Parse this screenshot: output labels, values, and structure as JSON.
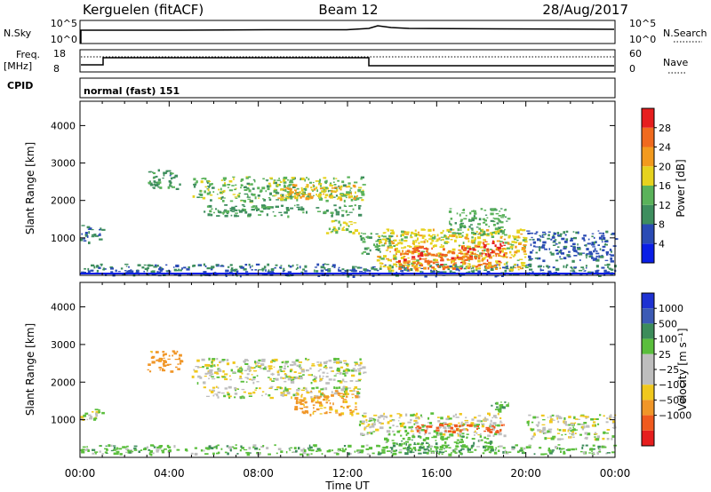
{
  "header": {
    "station": "Kerguelen (fitACF)",
    "beam": "Beam 12",
    "date": "28/Aug/2017"
  },
  "top_panels": {
    "nsky_label": "N.Sky",
    "nsky_ticks": [
      "10^5",
      "10^0"
    ],
    "nsearch_label": "N.Search",
    "nsearch_ticks": [
      "10^5",
      "10^0"
    ],
    "freq_label": "Freq.",
    "freq_unit": "[MHz]",
    "freq_ticks": [
      "18",
      "8"
    ],
    "nave_label": "Nave",
    "nave_ticks": [
      "60",
      "0"
    ],
    "cpid_label": "CPID",
    "cpid_value": "normal (fast) 151"
  },
  "colors": {
    "power_scale": [
      "#0a1ee6",
      "#2a4bb4",
      "#3e8e5e",
      "#5ab25a",
      "#e6d21e",
      "#f29a1e",
      "#f06a1e",
      "#e61e1e"
    ],
    "velocity_scale": [
      "#1e32d2",
      "#3c5ab4",
      "#3c8c5a",
      "#5abe3c",
      "#bebebe",
      "#bebebe",
      "#f0c81e",
      "#f09628",
      "#f05a1e",
      "#e61e1e"
    ]
  },
  "chart_data": [
    {
      "type": "heatmap",
      "name": "power",
      "ylabel": "Slant Range [km]",
      "xlabel": "Time UT",
      "x_ticks": [
        "00:00",
        "04:00",
        "08:00",
        "12:00",
        "16:00",
        "20:00",
        "00:00"
      ],
      "y_ticks": [
        "1000",
        "2000",
        "3000",
        "4000"
      ],
      "ylim": [
        0,
        4650
      ],
      "colorbar_label": "Power [dB]",
      "colorbar_ticks": [
        "4",
        "8",
        "12",
        "16",
        "20",
        "24",
        "28"
      ],
      "colorbar_range": [
        0,
        32
      ],
      "regions": [
        {
          "t0": 0.0,
          "t1": 24.0,
          "r0": 0,
          "r1": 150,
          "v": 7
        },
        {
          "t0": 0.0,
          "t1": 24.0,
          "r0": 150,
          "r1": 320,
          "v": 9
        },
        {
          "t0": 0.0,
          "t1": 1.0,
          "r0": 900,
          "r1": 1350,
          "v": 8
        },
        {
          "t0": 3.0,
          "t1": 4.5,
          "r0": 2300,
          "r1": 2850,
          "v": 10
        },
        {
          "t0": 5.0,
          "t1": 12.7,
          "r0": 2000,
          "r1": 2650,
          "v": 14
        },
        {
          "t0": 8.5,
          "t1": 12.4,
          "r0": 2050,
          "r1": 2450,
          "v": 20
        },
        {
          "t0": 5.5,
          "t1": 12.5,
          "r0": 1600,
          "r1": 1900,
          "v": 11
        },
        {
          "t0": 11.0,
          "t1": 12.5,
          "r0": 1150,
          "r1": 1500,
          "v": 16
        },
        {
          "t0": 12.5,
          "t1": 14.0,
          "r0": 600,
          "r1": 1150,
          "v": 12
        },
        {
          "t0": 13.3,
          "t1": 20.0,
          "r0": 150,
          "r1": 1250,
          "v": 18
        },
        {
          "t0": 14.0,
          "t1": 18.8,
          "r0": 200,
          "r1": 800,
          "v": 26
        },
        {
          "t0": 18.0,
          "t1": 19.0,
          "r0": 550,
          "r1": 950,
          "v": 30
        },
        {
          "t0": 16.5,
          "t1": 19.2,
          "r0": 1100,
          "r1": 1800,
          "v": 13
        },
        {
          "t0": 20.0,
          "t1": 24.0,
          "r0": 400,
          "r1": 1200,
          "v": 7
        }
      ]
    },
    {
      "type": "heatmap",
      "name": "velocity",
      "ylabel": "Slant Range [km]",
      "xlabel": "Time UT",
      "x_ticks": [
        "00:00",
        "04:00",
        "08:00",
        "12:00",
        "16:00",
        "20:00",
        "00:00"
      ],
      "y_ticks": [
        "1000",
        "2000",
        "3000",
        "4000"
      ],
      "ylim": [
        0,
        4650
      ],
      "colorbar_label": "Velocity [m s⁻¹]",
      "colorbar_ticks": [
        "1000",
        "500",
        "100",
        "25",
        "−25",
        "−100",
        "−500",
        "−1000"
      ],
      "regions": [
        {
          "t0": 0.0,
          "t1": 24.0,
          "r0": 100,
          "r1": 350,
          "v": 60
        },
        {
          "t0": 0.0,
          "t1": 1.0,
          "r0": 1000,
          "r1": 1350,
          "v": 0
        },
        {
          "t0": 3.0,
          "t1": 4.5,
          "r0": 2300,
          "r1": 2850,
          "v": -150
        },
        {
          "t0": 5.0,
          "t1": 12.7,
          "r0": 2000,
          "r1": 2650,
          "v": 0
        },
        {
          "t0": 5.5,
          "t1": 12.5,
          "r0": 1600,
          "r1": 1900,
          "v": 0
        },
        {
          "t0": 9.5,
          "t1": 12.4,
          "r0": 1150,
          "r1": 1800,
          "v": -120
        },
        {
          "t0": 12.5,
          "t1": 19.0,
          "r0": 600,
          "r1": 1200,
          "v": 0
        },
        {
          "t0": 13.5,
          "t1": 18.5,
          "r0": 150,
          "r1": 600,
          "v": 80
        },
        {
          "t0": 15.0,
          "t1": 19.0,
          "r0": 700,
          "r1": 900,
          "v": -600
        },
        {
          "t0": 18.3,
          "t1": 19.2,
          "r0": 1250,
          "r1": 1500,
          "v": 80
        },
        {
          "t0": 20.0,
          "t1": 24.0,
          "r0": 500,
          "r1": 1150,
          "v": 0
        }
      ]
    }
  ]
}
